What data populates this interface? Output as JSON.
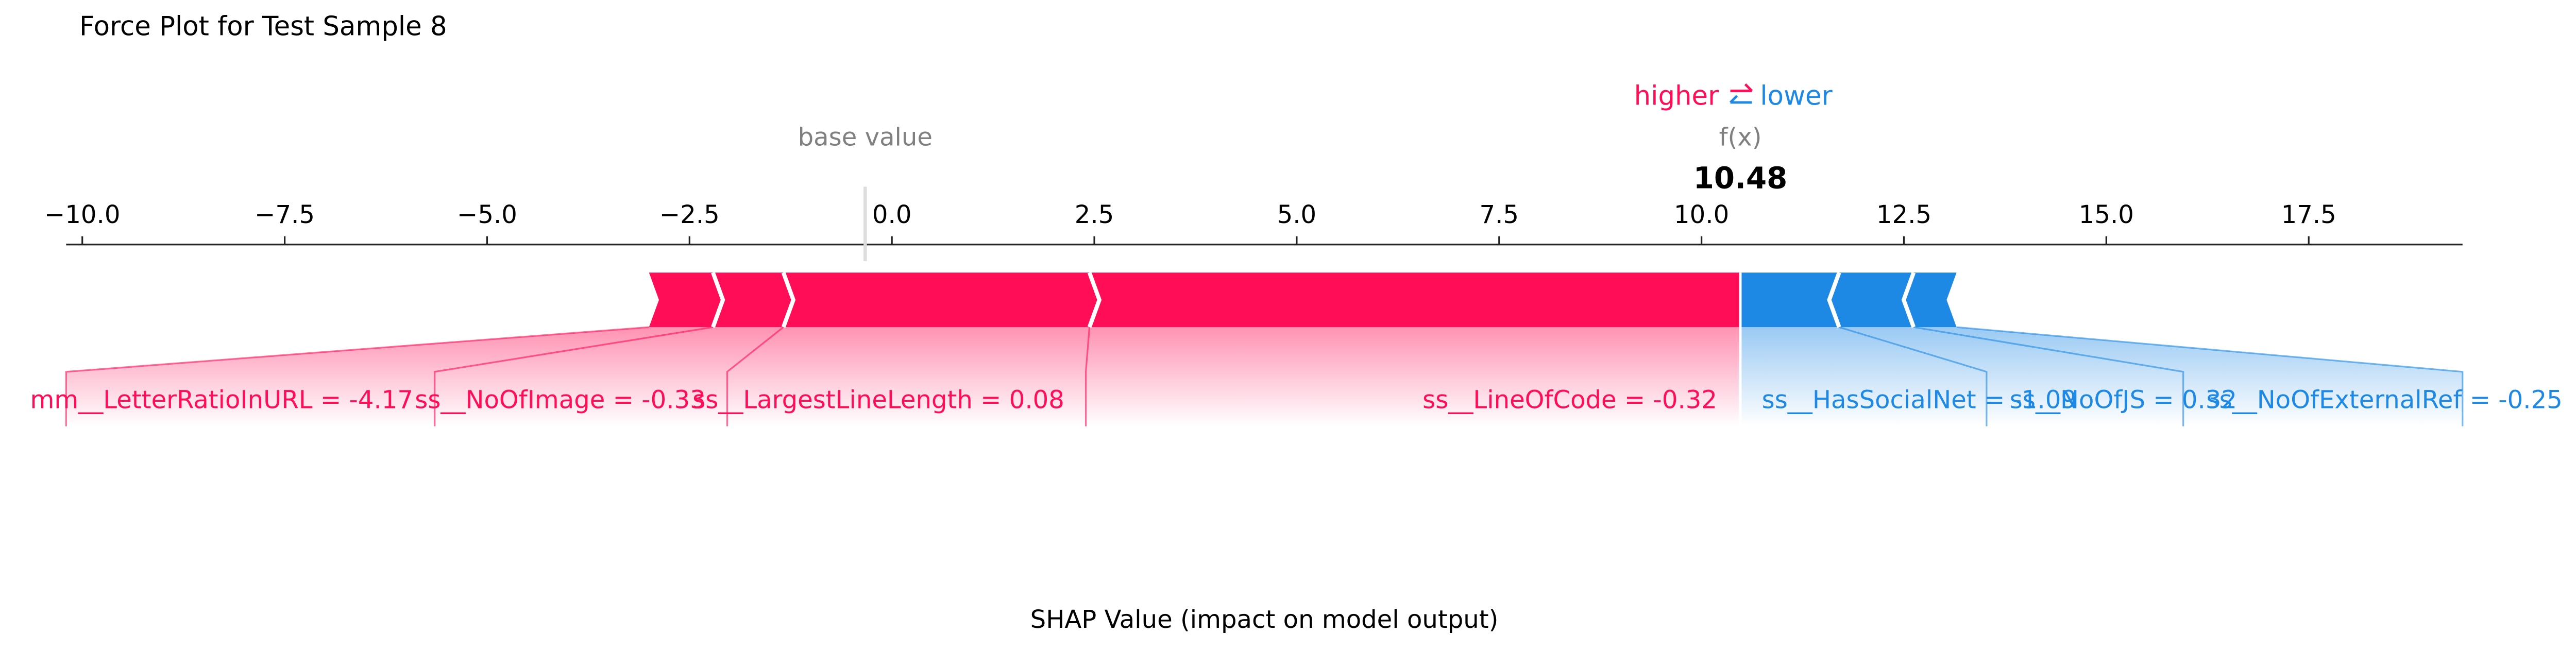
{
  "chart_data": {
    "type": "force",
    "title": "Force Plot for Test Sample 8",
    "xlabel": "SHAP Value (impact on model output)",
    "base_value_label": "base value",
    "base_value": -0.33,
    "output_label": "f(x)",
    "output_value": 10.48,
    "xlim": [
      -10.2,
      19.4
    ],
    "xticks": [
      {
        "value": -10,
        "label": "−10.0"
      },
      {
        "value": -7.5,
        "label": "−7.5"
      },
      {
        "value": -5,
        "label": "−5.0"
      },
      {
        "value": -2.5,
        "label": "−2.5"
      },
      {
        "value": 0,
        "label": "0.0"
      },
      2.5,
      {
        "value": 5,
        "label": "5.0"
      },
      7.5,
      {
        "value": 10,
        "label": "10.0"
      },
      12.5,
      {
        "value": 15,
        "label": "15.0"
      },
      17.5
    ],
    "series": [
      {
        "name": "higher",
        "color": "#ff0d57",
        "labels": [
          "ss__LineOfCode = -0.32",
          "ss__LargestLineLength = 0.08",
          "ss__NoOfImage = -0.33",
          "mm__LetterRatioInURL = -4.17"
        ],
        "values": [
          8.04,
          3.78,
          0.87,
          0.79
        ]
      },
      {
        "name": "lower",
        "color": "#1e88e5",
        "labels": [
          "ss__HasSocialNet = -1.09",
          "ss__NoOfJS = 0.32",
          "ss__NoOfExternalRef = -0.25"
        ],
        "values": [
          -1.22,
          -0.92,
          -0.53
        ]
      }
    ]
  }
}
